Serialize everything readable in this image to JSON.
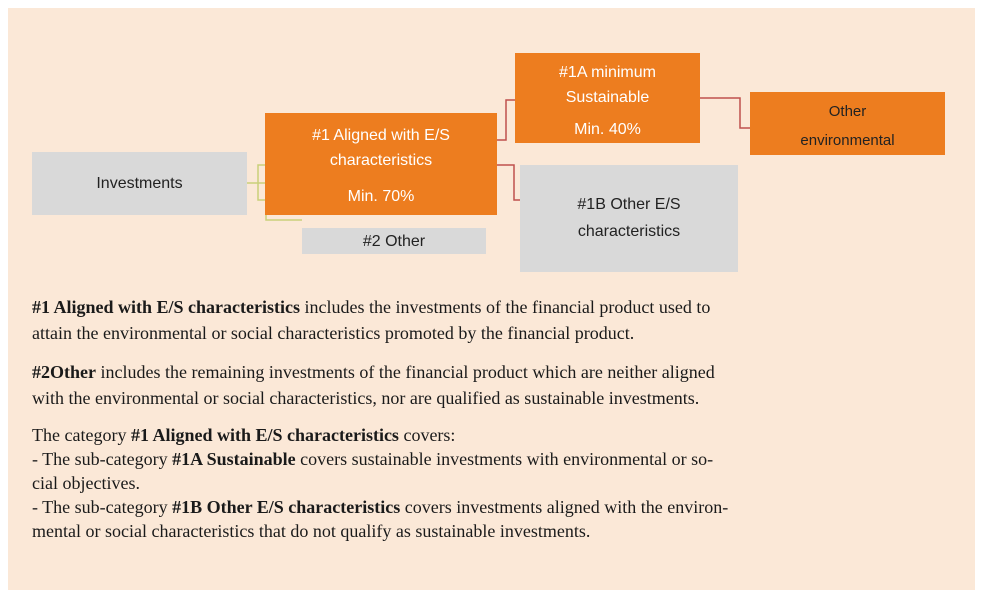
{
  "nodes": [
    {
      "lines": [
        "Investments"
      ]
    },
    {
      "lines": [
        "#1  Aligned with E/S",
        "characteristics",
        "Min. 70%"
      ]
    },
    {
      "lines": [
        "#2 Other"
      ]
    },
    {
      "lines": [
        "#1A minimum",
        "Sustainable",
        "Min. 40%"
      ]
    },
    {
      "lines": [
        "Other",
        "environmental"
      ]
    },
    {
      "lines": [
        "#1B Other E/S",
        "characteristics"
      ]
    }
  ],
  "text": {
    "paragraphs": [
      {
        "lines": [
          [
            {
              "text": "#1 Aligned with E/S characteristics",
              "bold": true
            },
            {
              "text": " includes the investments of the financial product used to"
            }
          ],
          [
            {
              "text": "attain the environmental or social characteristics promoted by the financial product."
            }
          ]
        ]
      },
      {
        "lines": [
          [
            {
              "text": "#2Other",
              "bold": true
            },
            {
              "text": " includes the remaining investments of the financial product which are neither aligned"
            }
          ],
          [
            {
              "text": "with the environmental or social characteristics, nor are qualified as sustainable investments."
            }
          ]
        ]
      },
      {
        "lines": [
          [
            {
              "text": "The category "
            },
            {
              "text": "#1 Aligned with E/S characteristics",
              "bold": true
            },
            {
              "text": " covers:"
            }
          ],
          [
            {
              "text": "- The sub-category "
            },
            {
              "text": "#1A Sustainable",
              "bold": true
            },
            {
              "text": " covers sustainable investments with environmental or so-"
            }
          ],
          [
            {
              "text": "cial objectives."
            }
          ],
          [
            {
              "text": "- The sub-category "
            },
            {
              "text": "#1B Other E/S characteristics",
              "bold": true
            },
            {
              "text": " covers investments aligned with the environ-"
            }
          ],
          [
            {
              "text": "mental or social characteristics that do not qualify as sustainable investments."
            }
          ]
        ]
      }
    ]
  }
}
